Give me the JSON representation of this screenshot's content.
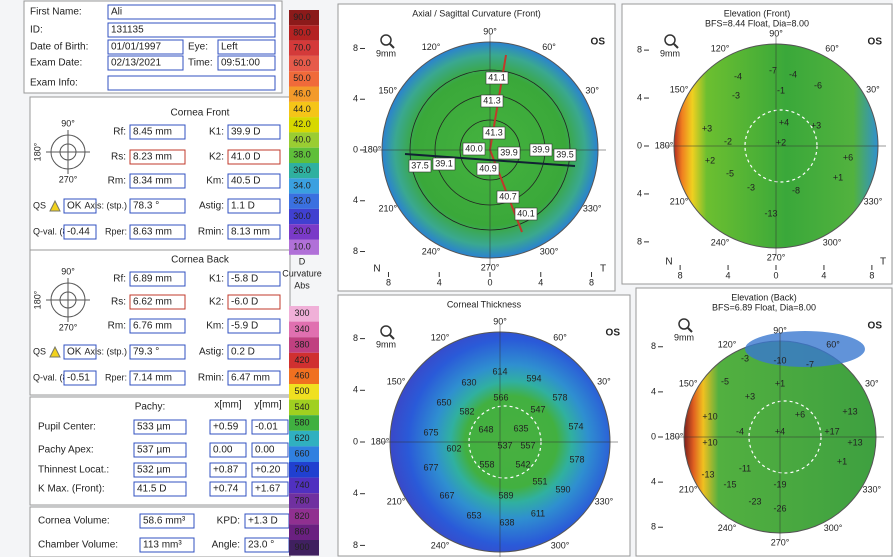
{
  "patient": {
    "rows": [
      [
        "First Name:",
        "Ali"
      ],
      [
        "ID:",
        "131135"
      ],
      [
        "Date of Birth:",
        "01/01/1997",
        "Eye:",
        "Left"
      ],
      [
        "Exam Date:",
        "02/13/2021",
        "Time:",
        "09:51:00"
      ],
      [
        "Exam Info:"
      ]
    ]
  },
  "cornea_front": {
    "title": "Cornea Front",
    "diagram": [
      "90°",
      "180°",
      "270°"
    ],
    "rows": [
      [
        "Rf:",
        "8.45 mm",
        "K1:",
        "39.9 D"
      ],
      [
        "Rs:",
        "8.23 mm",
        "K2:",
        "41.0 D"
      ],
      [
        "Rm:",
        "8.34 mm",
        "Km:",
        "40.5 D"
      ],
      [
        "QS",
        "OK",
        "Axis: (stp.)",
        "78.3 °",
        "Astig:",
        "1.1 D"
      ],
      [
        "Q-val. (8mm)",
        "-0.44",
        "Rper:",
        "8.63 mm",
        "Rmin:",
        "8.13 mm"
      ]
    ]
  },
  "cornea_back": {
    "title": "Cornea Back",
    "diagram": [
      "90°",
      "180°",
      "270°"
    ],
    "rows": [
      [
        "Rf:",
        "6.89 mm",
        "K1:",
        "-5.8 D"
      ],
      [
        "Rs:",
        "6.62 mm",
        "K2:",
        "-6.0 D"
      ],
      [
        "Rm:",
        "6.76 mm",
        "Km:",
        "-5.9 D"
      ],
      [
        "QS",
        "OK",
        "Axis: (stp.)",
        "79.3 °",
        "Astig:",
        "0.2 D"
      ],
      [
        "Q-val. (8mm)",
        "-0.51",
        "Rper:",
        "7.14 mm",
        "Rmin:",
        "6.47 mm"
      ]
    ]
  },
  "pachy": {
    "header": [
      "Pachy:",
      "x[mm]",
      "y[mm]"
    ],
    "rows": [
      [
        "Pupil Center:",
        "533 µm",
        "+0.59",
        "-0.01"
      ],
      [
        "Pachy Apex:",
        "537 µm",
        "0.00",
        "0.00"
      ],
      [
        "Thinnest Locat.:",
        "532 µm",
        "+0.87",
        "+0.20"
      ],
      [
        "K Max. (Front):",
        "41.5 D",
        "+0.74",
        "+1.67"
      ]
    ]
  },
  "volume": {
    "rows": [
      [
        "Cornea Volume:",
        "58.6 mm³",
        "KPD:",
        "+1.3 D"
      ],
      [
        "Chamber Volume:",
        "113 mm³",
        "Angle:",
        "23.0 °"
      ]
    ]
  },
  "scales": [
    {
      "labels": [
        "90.0",
        "80.0",
        "70.0",
        "60.0",
        "50.0",
        "46.0",
        "44.0",
        "42.0",
        "40.0",
        "38.0",
        "36.0",
        "34.0",
        "32.0",
        "30.0",
        "20.0",
        "10.0"
      ],
      "colors": [
        "#8b1a1a",
        "#b42222",
        "#d43a3a",
        "#e65a4a",
        "#f06a3a",
        "#f39a2a",
        "#f5c518",
        "#d7d800",
        "#9acd32",
        "#5fbf3a",
        "#2fb0a0",
        "#3aa0e0",
        "#3a70e0",
        "#4040d0",
        "#7a3ac8",
        "#b070d8"
      ],
      "footer": [
        "D",
        "Curvature",
        "Abs"
      ]
    },
    {
      "labels": [
        "300",
        "340",
        "380",
        "420",
        "460",
        "500",
        "540",
        "580",
        "620",
        "660",
        "700",
        "740",
        "780",
        "820",
        "860",
        "900"
      ],
      "colors": [
        "#f0b0d8",
        "#e070b0",
        "#c04080",
        "#d03030",
        "#f07020",
        "#f0e020",
        "#a0d020",
        "#40b040",
        "#30b0c0",
        "#3080e0",
        "#2040d0",
        "#5030c0",
        "#7030a0",
        "#903090",
        "#6a2080",
        "#402060"
      ]
    }
  ],
  "map_axis": {
    "ticks": [
      "8",
      "4",
      "0",
      "4",
      "8"
    ],
    "nasal": "N",
    "temporal": "T",
    "zoom": "9mm",
    "angles": [
      "90°",
      "60°",
      "30°",
      "330°",
      "300°",
      "270°",
      "240°",
      "210°",
      "180°",
      "150°",
      "120°"
    ]
  },
  "maps": [
    {
      "title": "Axial / Sagittal Curvature (Front)",
      "eye": "OS",
      "labels": [
        "41.1",
        "41.3",
        "41.3",
        "40.0",
        "39.9",
        "39.9",
        "39.5",
        "37.5",
        "39.1",
        "40.9",
        "40.7",
        "40.1"
      ]
    },
    {
      "title": "Elevation (Front)",
      "subtitle": "BFS=8.44 Float, Dia=8.00",
      "eye": "OS",
      "labels": [
        "-4",
        "-7",
        "-4",
        "-6",
        "-3",
        "-1",
        "+3",
        "-2",
        "+4",
        "+2",
        "+6",
        "+2",
        "-5",
        "-3",
        "-8",
        "+1",
        "-13",
        "+3"
      ]
    },
    {
      "title": "Corneal Thickness",
      "eye": "OS",
      "labels": [
        "614",
        "594",
        "630",
        "566",
        "578",
        "650",
        "582",
        "547",
        "675",
        "648",
        "635",
        "574",
        "602",
        "537",
        "557",
        "578",
        "677",
        "558",
        "542",
        "551",
        "590",
        "667",
        "589",
        "653",
        "638",
        "611"
      ]
    },
    {
      "title": "Elevation (Back)",
      "subtitle": "BFS=6.89 Float, Dia=8.00",
      "eye": "OS",
      "labels": [
        "-3",
        "-10",
        "-7",
        "-5",
        "+1",
        "+3",
        "+10",
        "+6",
        "-4",
        "+4",
        "+13",
        "+17",
        "+13",
        "+10",
        "-11",
        "-13",
        "-15",
        "-19",
        "+1",
        "-23",
        "-26"
      ]
    }
  ]
}
